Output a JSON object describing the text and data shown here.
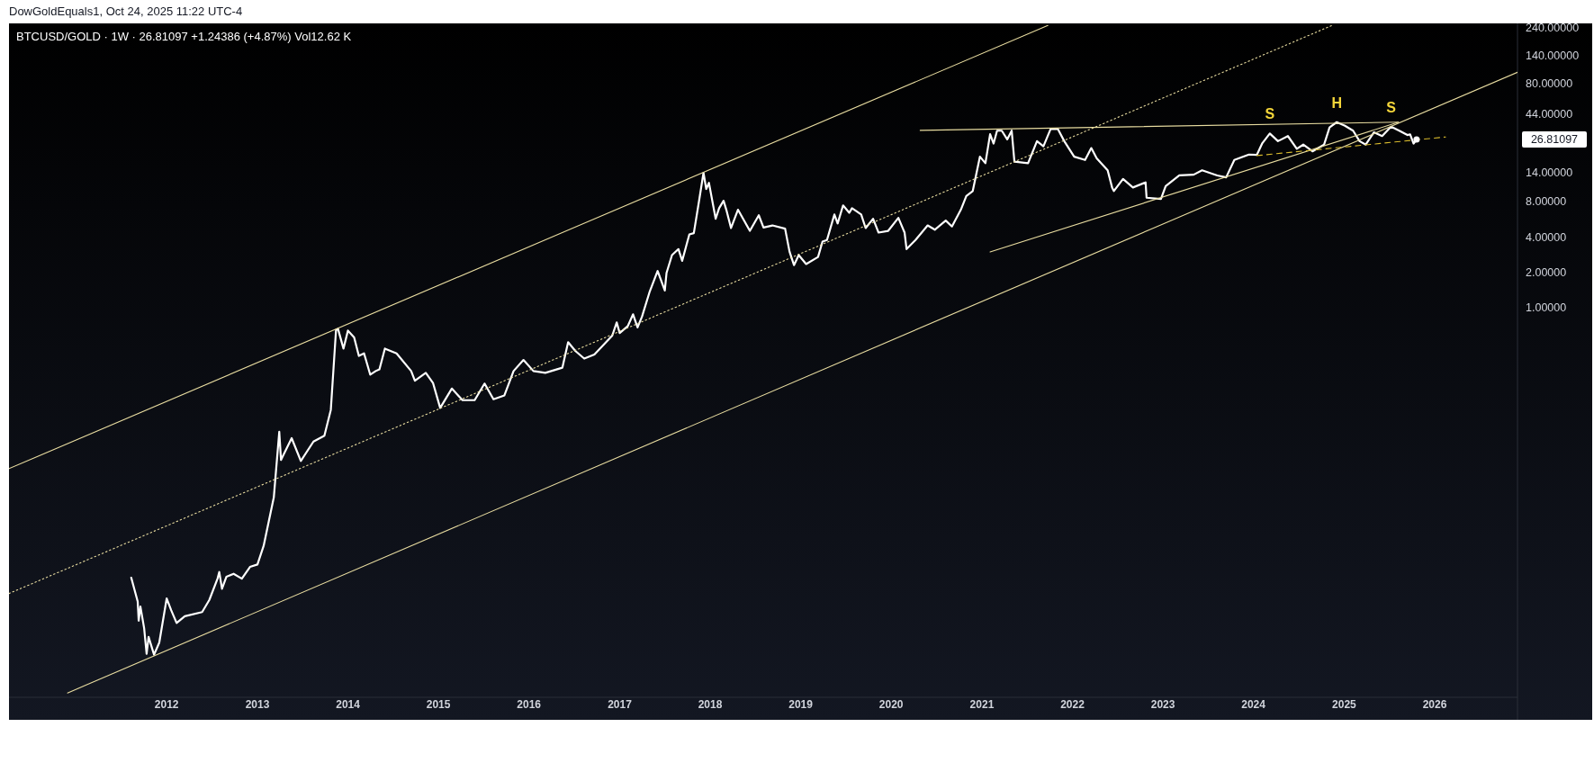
{
  "chart_data": {
    "type": "line",
    "log": "y",
    "title": "BTCUSD/GOLD · 1W · 26.81097 +1.24386 (+4.87%) Vol12.62 K",
    "xlim": [
      "2010-04-05",
      "2026-12-01"
    ],
    "ylim": [
      0.0005,
      260
    ],
    "xticks": [
      "2012",
      "2013",
      "2014",
      "2015",
      "2016",
      "2017",
      "2018",
      "2019",
      "2020",
      "2021",
      "2022",
      "2023",
      "2024",
      "2025",
      "2026"
    ],
    "yticks": [
      {
        "value": 1,
        "label": "1.00000"
      },
      {
        "value": 2,
        "label": "2.00000"
      },
      {
        "value": 4,
        "label": "4.00000"
      },
      {
        "value": 8,
        "label": "8.00000"
      },
      {
        "value": 14,
        "label": "14.00000"
      },
      {
        "value": 44,
        "label": "44.00000"
      },
      {
        "value": 80,
        "label": "80.00000"
      },
      {
        "value": 140,
        "label": "140.00000"
      },
      {
        "value": 240,
        "label": "240.00000"
      }
    ],
    "series": [
      {
        "color": "#ffffff",
        "x": [
          "2011-08-11",
          "2011-09-06",
          "2011-09-10",
          "2011-09-17",
          "2011-10-02",
          "2011-10-12",
          "2011-10-20",
          "2011-11-11",
          "2011-12-02",
          "2012-01-01",
          "2012-01-19",
          "2012-02-10",
          "2012-03-14",
          "2012-05-23",
          "2012-06-21",
          "2012-07-24",
          "2012-07-31",
          "2012-08-11",
          "2012-08-29",
          "2012-09-27",
          "2012-10-30",
          "2012-12-02",
          "2013-01-01",
          "2013-01-26",
          "2013-02-17",
          "2013-03-08",
          "2013-03-30",
          "2013-04-06",
          "2013-05-19",
          "2013-06-25",
          "2013-08-15",
          "2013-09-28",
          "2013-10-24",
          "2013-11-14",
          "2013-11-22",
          "2013-12-14",
          "2014-01-01",
          "2014-01-26",
          "2014-02-14",
          "2014-03-07",
          "2014-04-01",
          "2014-04-23",
          "2014-05-08",
          "2014-05-30",
          "2014-07-16",
          "2014-09-13",
          "2014-09-28",
          "2014-11-11",
          "2014-12-10",
          "2015-01-08",
          "2015-02-24",
          "2015-04-08",
          "2015-05-27",
          "2015-07-06",
          "2015-08-11",
          "2015-09-24",
          "2015-10-31",
          "2015-12-10",
          "2016-01-19",
          "2016-03-07",
          "2016-05-15",
          "2016-06-07",
          "2016-07-06",
          "2016-08-11",
          "2016-09-21",
          "2016-12-02",
          "2016-12-20",
          "2017-01-01",
          "2017-02-03",
          "2017-02-24",
          "2017-03-14",
          "2017-04-01",
          "2017-05-01",
          "2017-06-03",
          "2017-07-02",
          "2017-07-09",
          "2017-07-31",
          "2017-08-26",
          "2017-09-10",
          "2017-10-09",
          "2017-10-27",
          "2017-11-18",
          "2017-12-05",
          "2017-12-16",
          "2017-12-27",
          "2018-01-23",
          "2018-02-06",
          "2018-02-24",
          "2018-03-07",
          "2018-03-26",
          "2018-04-23",
          "2018-06-10",
          "2018-07-16",
          "2018-08-04",
          "2018-09-09",
          "2018-10-30",
          "2018-11-17",
          "2018-12-05",
          "2018-12-24",
          "2019-01-23",
          "2019-03-12",
          "2019-03-30",
          "2019-04-17",
          "2019-05-17",
          "2019-05-30",
          "2019-06-21",
          "2019-07-16",
          "2019-07-27",
          "2019-09-02",
          "2019-09-20",
          "2019-10-20",
          "2019-11-11",
          "2019-12-20",
          "2020-01-30",
          "2020-02-24",
          "2020-03-03",
          "2020-04-08",
          "2020-05-27",
          "2020-06-25",
          "2020-08-08",
          "2020-09-02",
          "2020-10-08",
          "2020-10-30",
          "2020-11-25",
          "2020-12-24",
          "2021-01-15",
          "2021-02-03",
          "2021-02-17",
          "2021-03-03",
          "2021-03-22",
          "2021-04-13",
          "2021-05-01",
          "2021-05-12",
          "2021-07-06",
          "2021-08-11",
          "2021-09-06",
          "2021-10-05",
          "2021-11-03",
          "2021-11-29",
          "2022-01-08",
          "2022-02-21",
          "2022-03-18",
          "2022-04-09",
          "2022-05-23",
          "2022-06-10",
          "2022-06-17",
          "2022-07-24",
          "2022-09-02",
          "2022-10-23",
          "2022-10-27",
          "2022-12-24",
          "2023-01-12",
          "2023-03-08",
          "2023-05-05",
          "2023-06-08",
          "2023-08-08",
          "2023-09-13",
          "2023-10-16",
          "2023-12-14",
          "2024-01-15",
          "2024-02-06",
          "2024-03-07",
          "2024-04-09",
          "2024-05-19",
          "2024-06-24",
          "2024-07-20",
          "2024-08-26",
          "2024-10-12",
          "2024-11-03",
          "2024-12-02",
          "2025-01-04",
          "2025-02-06",
          "2025-03-04",
          "2025-03-29",
          "2025-05-01",
          "2025-06-03",
          "2025-07-09",
          "2025-08-11",
          "2025-09-13",
          "2025-09-24",
          "2025-10-08",
          "2025-10-20"
        ],
        "values": [
          0.0051,
          0.0032,
          0.0022,
          0.0029,
          0.0019,
          0.00115,
          0.0016,
          0.00113,
          0.00143,
          0.0034,
          0.0027,
          0.0021,
          0.0024,
          0.0026,
          0.0033,
          0.005,
          0.0057,
          0.0041,
          0.0052,
          0.0055,
          0.005,
          0.0063,
          0.0066,
          0.0095,
          0.0158,
          0.0245,
          0.0885,
          0.051,
          0.078,
          0.05,
          0.073,
          0.082,
          0.136,
          0.65,
          0.66,
          0.45,
          0.64,
          0.56,
          0.39,
          0.41,
          0.27,
          0.29,
          0.3,
          0.45,
          0.41,
          0.29,
          0.24,
          0.28,
          0.23,
          0.141,
          0.206,
          0.164,
          0.164,
          0.227,
          0.167,
          0.18,
          0.29,
          0.36,
          0.29,
          0.28,
          0.31,
          0.51,
          0.43,
          0.37,
          0.4,
          0.58,
          0.75,
          0.61,
          0.7,
          0.88,
          0.68,
          0.84,
          1.35,
          2.05,
          1.4,
          1.98,
          2.8,
          3.15,
          2.5,
          4.2,
          4.3,
          8.3,
          14,
          10.2,
          11.5,
          5.7,
          7,
          8.1,
          6.8,
          4.75,
          6.8,
          4.5,
          6.1,
          4.8,
          5,
          4.7,
          3,
          2.3,
          2.8,
          2.35,
          2.7,
          3.65,
          3.76,
          6.2,
          5.2,
          7.4,
          6.4,
          7,
          6.2,
          4.75,
          5.7,
          4.35,
          4.5,
          5.8,
          4.35,
          3.15,
          3.76,
          5,
          4.6,
          5.5,
          4.9,
          6.8,
          8.9,
          9.8,
          19.2,
          16.9,
          29.8,
          24.8,
          31.9,
          31.9,
          26.9,
          31.9,
          17.4,
          16.9,
          26,
          23.5,
          33,
          33,
          26,
          19.2,
          18,
          22.7,
          18.6,
          14.7,
          10.5,
          9.8,
          12.4,
          10.5,
          11.6,
          8.6,
          8.4,
          10.8,
          13.3,
          13.5,
          14.7,
          13.3,
          12.8,
          18,
          20,
          19.9,
          25,
          30.2,
          26,
          28.7,
          22.4,
          24.3,
          21.3,
          24.3,
          34,
          37.7,
          35.1,
          31.9,
          26,
          24.3,
          30.9,
          28.7,
          34.5,
          31.9,
          29.3,
          29.7,
          24.8,
          26.81097
        ]
      },
      {
        "color": "#e8dca0",
        "line_style": "solid",
        "x": [
          "2010-04-05",
          "2021-09-24"
        ],
        "values": [
          0.043,
          250
        ]
      },
      {
        "color": "#e8dca0",
        "line_style": "dotted",
        "x": [
          "2010-04-05",
          "2024-11-13"
        ],
        "values": [
          0.00374,
          250
        ]
      },
      {
        "color": "#e8dca0",
        "line_style": "solid",
        "x": [
          "2010-11-27",
          "2026-12-01"
        ],
        "values": [
          0.000535,
          100
        ]
      },
      {
        "color": "#e8dca0",
        "line_style": "solid",
        "x": [
          "2020-04-27",
          "2025-08-08"
        ],
        "values": [
          32.1,
          37.7
        ]
      },
      {
        "color": "#e8dca0",
        "line_style": "solid",
        "x": [
          "2021-02-03",
          "2025-08-08"
        ],
        "values": [
          2.98,
          37.7
        ]
      },
      {
        "color": "#d9bb2e",
        "line_style": "dashed",
        "x": [
          "2024-01-15",
          "2026-02-14"
        ],
        "values": [
          19.6,
          28.2
        ]
      }
    ],
    "annotations": [
      "DowGoldEquals1, Oct 24, 2025 11:22 UTC-4",
      {
        "text": "S",
        "x": "2024-03-07",
        "y": 30.2
      },
      {
        "text": "H",
        "x": "2024-12-02",
        "y": 37.7
      },
      {
        "text": "S",
        "x": "2025-07-09",
        "y": 34.5
      },
      "26.81097"
    ]
  }
}
